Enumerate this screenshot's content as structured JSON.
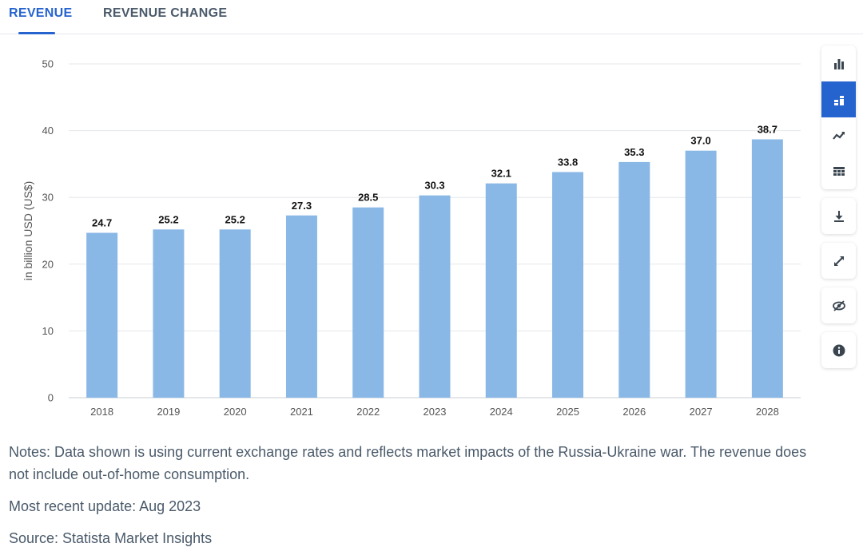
{
  "tabs": [
    {
      "label": "REVENUE",
      "active": true
    },
    {
      "label": "REVENUE CHANGE",
      "active": false
    }
  ],
  "chart_data": {
    "type": "bar",
    "categories": [
      "2018",
      "2019",
      "2020",
      "2021",
      "2022",
      "2023",
      "2024",
      "2025",
      "2026",
      "2027",
      "2028"
    ],
    "values": [
      24.7,
      25.2,
      25.2,
      27.3,
      28.5,
      30.3,
      32.1,
      33.8,
      35.3,
      37.0,
      38.7
    ],
    "value_labels": [
      "24.7",
      "25.2",
      "25.2",
      "27.3",
      "28.5",
      "30.3",
      "32.1",
      "33.8",
      "35.3",
      "37.0",
      "38.7"
    ],
    "ylabel": "in billion USD (US$)",
    "ylim": [
      0,
      50
    ],
    "yticks": [
      0,
      10,
      20,
      30,
      40,
      50
    ],
    "grid": true,
    "bar_color": "#8ab8e6"
  },
  "toolbar": {
    "groups": [
      [
        "bar-chart-icon",
        "stacked-bar-icon",
        "line-chart-icon",
        "table-icon"
      ],
      [
        "download-icon"
      ],
      [
        "expand-icon"
      ],
      [
        "hide-icon"
      ],
      [
        "info-icon"
      ]
    ],
    "active": "stacked-bar-icon"
  },
  "notes": {
    "text": "Notes: Data shown is using current exchange rates and reflects market impacts of the Russia-Ukraine war. The revenue does not include out-of-home consumption.",
    "update": "Most recent update: Aug 2023",
    "source": "Source: Statista Market Insights"
  },
  "colors": {
    "accent": "#2563cf",
    "bar": "#8ab8e6",
    "grid": "#e3e7eb"
  }
}
